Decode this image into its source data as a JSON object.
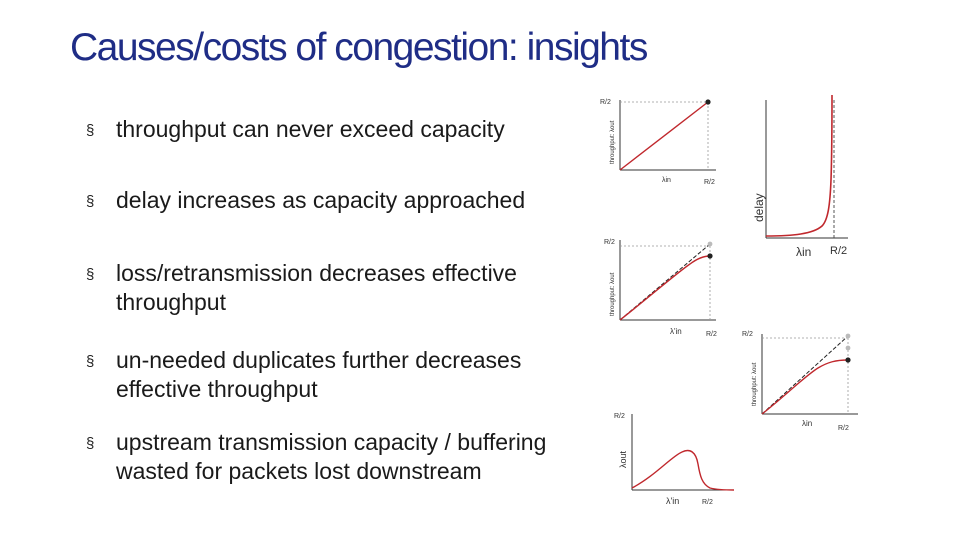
{
  "slide": {
    "title": "Causes/costs of congestion: insights",
    "bullet_marker": "§",
    "bullets": [
      "throughput can never exceed capacity",
      "delay increases as capacity approached",
      "loss/retransmission decreases effective throughput",
      "un-needed duplicates further decreases effective throughput",
      "upstream transmission capacity / buffering wasted for packets lost downstream"
    ]
  },
  "plots": {
    "throughput_linear": {
      "ylabel": "throughput: λout",
      "ytick": "R/2",
      "xlabel": "λin",
      "xtick": "R/2"
    },
    "delay": {
      "ylabel": "delay",
      "xlabel": "λin",
      "xtick": "R/2"
    },
    "retransmission": {
      "ylabel": "throughput: λout",
      "ytick": "R/2",
      "xlabel": "λ'in",
      "xtick": "R/2"
    },
    "duplicates": {
      "ylabel": "throughput: λout",
      "ytick": "R/2",
      "xlabel": "λin",
      "xtick": "R/2"
    },
    "multihop": {
      "ylabel": "λout",
      "ytick": "R/2",
      "xlabel": "λ'in",
      "xtick": "R/2"
    }
  },
  "colors": {
    "title": "#1f2d86",
    "curve": "#c0282d",
    "ideal": "#222222",
    "marker": "#222222"
  }
}
